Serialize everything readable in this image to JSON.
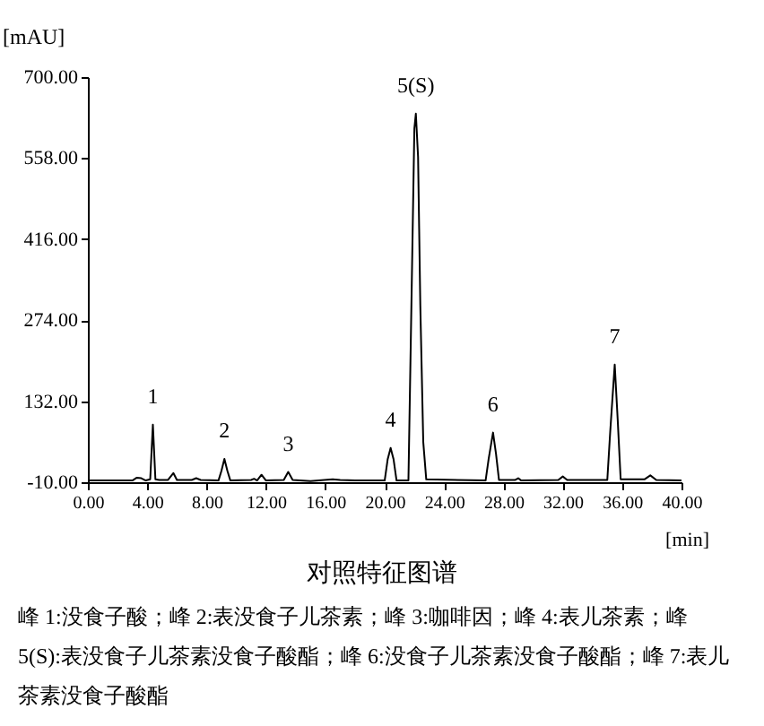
{
  "chart_data": {
    "type": "line",
    "title": "对照特征图谱",
    "xlabel": "[min]",
    "ylabel": "[mAU]",
    "xlim": [
      0,
      40
    ],
    "ylim": [
      -10,
      700
    ],
    "xticks": [
      {
        "value": 0,
        "label": "0.00"
      },
      {
        "value": 4,
        "label": "4.00"
      },
      {
        "value": 8,
        "label": "8.00"
      },
      {
        "value": 12,
        "label": "12.00"
      },
      {
        "value": 16,
        "label": "16.00"
      },
      {
        "value": 20,
        "label": "20.00"
      },
      {
        "value": 24,
        "label": "24.00"
      },
      {
        "value": 28,
        "label": "28.00"
      },
      {
        "value": 32,
        "label": "32.00"
      },
      {
        "value": 36,
        "label": "36.00"
      },
      {
        "value": 40,
        "label": "40.00"
      }
    ],
    "yticks": [
      {
        "value": -10,
        "label": "-10.00"
      },
      {
        "value": 132,
        "label": "132.00"
      },
      {
        "value": 274,
        "label": "274.00"
      },
      {
        "value": 416,
        "label": "416.00"
      },
      {
        "value": 558,
        "label": "558.00"
      },
      {
        "value": 700,
        "label": "700.00"
      }
    ],
    "grid": false,
    "legend": false,
    "marker": "none",
    "line_style": "solid",
    "series": [
      {
        "color": "#000000",
        "x": [
          0,
          3.0,
          3.3,
          3.6,
          3.9,
          4.2,
          4.38,
          4.55,
          4.8,
          5.4,
          5.76,
          6.0,
          7.0,
          7.3,
          7.6,
          8.8,
          9.0,
          9.2,
          9.4,
          9.6,
          11.0,
          11.2,
          11.4,
          11.7,
          12.0,
          13.2,
          13.5,
          13.8,
          15.0,
          16.5,
          17.0,
          18.0,
          20.0,
          20.2,
          20.4,
          20.6,
          20.8,
          21.6,
          21.8,
          22.0,
          22.1,
          22.25,
          22.4,
          22.6,
          22.8,
          26.8,
          27.0,
          27.3,
          27.5,
          27.7,
          28.8,
          29.0,
          29.2,
          31.7,
          32.0,
          32.3,
          35.0,
          35.2,
          35.5,
          35.7,
          35.9,
          37.5,
          37.9,
          38.3,
          40
        ],
        "values": [
          -7,
          -7,
          -2,
          -3,
          -7,
          -5,
          91,
          -5,
          -6,
          -6,
          6,
          -6,
          -6,
          -3,
          -6,
          -7,
          10,
          31,
          10,
          -7,
          -6,
          -4,
          -7,
          3,
          -7,
          -6,
          8,
          -6,
          -8,
          -5,
          -6,
          -7,
          -7,
          30,
          50,
          30,
          -7,
          -7,
          300,
          610,
          636,
          560,
          300,
          60,
          -5,
          -7,
          30,
          77,
          40,
          -6,
          -6,
          -3,
          -7,
          -6,
          0,
          -6,
          -6,
          80,
          196,
          100,
          -5,
          -5,
          2,
          -6,
          -7
        ]
      }
    ],
    "annotations": [
      {
        "text": "1",
        "x": 4.38,
        "y": 91
      },
      {
        "text": "2",
        "x": 9.2,
        "y": 31
      },
      {
        "text": "3",
        "x": 13.5,
        "y": 8
      },
      {
        "text": "4",
        "x": 20.4,
        "y": 50
      },
      {
        "text": "5(S)",
        "x": 22.1,
        "y": 636
      },
      {
        "text": "6",
        "x": 27.3,
        "y": 77
      },
      {
        "text": "7",
        "x": 35.5,
        "y": 196
      },
      "峰 1:没食子酸；峰 2:表没食子儿茶素；峰 3:咖啡因；峰 4:表儿茶素；峰 5(S):表没食子儿茶素没食子酸酯；峰 6:没食子儿茶素没食子酸酯；峰 7:表儿茶素没食子酸酯"
    ]
  }
}
